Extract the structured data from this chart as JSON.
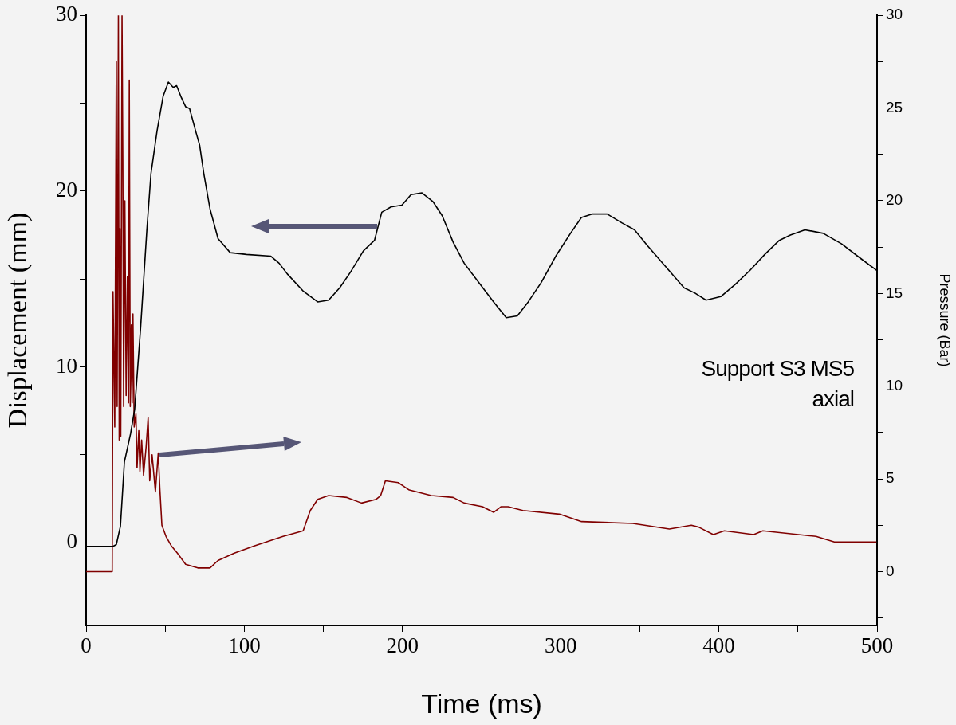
{
  "chart_data": {
    "type": "line",
    "xlabel": "Time (ms)",
    "ylabel": "Displacement (mm)",
    "y2label": "Pressure (Bar)",
    "annotations": [
      "Support S3 MS5\naxial"
    ],
    "xlim": [
      0,
      500
    ],
    "xticks": [
      0,
      {
        "value": 50,
        "label": null
      },
      100,
      {
        "value": 150,
        "label": null
      },
      200,
      {
        "value": 250,
        "label": null
      },
      300,
      {
        "value": 350,
        "label": null
      },
      400,
      {
        "value": 450,
        "label": null
      },
      500
    ],
    "ylim": [
      -4.7,
      30
    ],
    "yticks": [
      0,
      {
        "value": 5,
        "label": null
      },
      10,
      {
        "value": 15,
        "label": null
      },
      20,
      {
        "value": 25,
        "label": null
      },
      30
    ],
    "y2lim": [
      -2.9,
      30
    ],
    "y2ticks": [
      {
        "value": -2.5,
        "label": null
      },
      0,
      {
        "value": 2.5,
        "label": null
      },
      5,
      {
        "value": 7.5,
        "label": null
      },
      10,
      {
        "value": 12.5,
        "label": null
      },
      15,
      {
        "value": 17.5,
        "label": null
      },
      20,
      {
        "value": 22.5,
        "label": null
      },
      25,
      {
        "value": 27.5,
        "label": null
      },
      30
    ],
    "marker": "none",
    "legend": false,
    "series": [
      {
        "color": "#000000",
        "x": [
          0,
          17,
          19.1,
          21.7,
          24.2,
          28.1,
          30.7,
          34.5,
          38.4,
          41,
          44.8,
          48.7,
          52,
          55.1,
          57.2,
          60.3,
          62.9,
          65.4,
          69.3,
          71.8,
          74.4,
          78.3,
          83.4,
          91.1,
          101.4,
          116.8,
          122,
          127.1,
          137.4,
          146.4,
          153.3,
          160.3,
          167.2,
          175.3,
          182.3,
          186.9,
          192.7,
          199.6,
          205.4,
          212.3,
          219.3,
          225.1,
          232,
          239,
          248.3,
          257.6,
          265.6,
          272.6,
          279.5,
          287.7,
          296.9,
          306.2,
          313.1,
          320.1,
          329.4,
          338.6,
          346.7,
          354.8,
          366.4,
          378,
          384.9,
          391.9,
          401.2,
          410.4,
          419.7,
          429,
          438.2,
          445.2,
          454.4,
          466,
          477.6,
          489.2,
          499.6
        ],
        "values": [
          -0.2,
          -0.2,
          -0.1,
          0.95,
          4.6,
          6.2,
          7.6,
          12.3,
          17.8,
          21.0,
          23.4,
          25.4,
          26.2,
          25.9,
          26.0,
          25.3,
          24.8,
          24.7,
          23.4,
          22.6,
          21.0,
          19.0,
          17.3,
          16.5,
          16.4,
          16.3,
          15.9,
          15.3,
          14.3,
          13.7,
          13.8,
          14.5,
          15.4,
          16.6,
          17.2,
          18.8,
          19.1,
          19.2,
          19.8,
          19.9,
          19.4,
          18.6,
          17.1,
          15.9,
          14.8,
          13.7,
          12.8,
          12.9,
          13.7,
          14.8,
          16.3,
          17.6,
          18.5,
          18.7,
          18.7,
          18.2,
          17.8,
          16.9,
          15.7,
          14.5,
          14.2,
          13.8,
          14.0,
          14.7,
          15.5,
          16.4,
          17.2,
          17.5,
          17.8,
          17.6,
          17.0,
          16.2,
          15.5
        ]
      },
      {
        "color": "#800000",
        "axis": "y2",
        "x": [
          0,
          16.5,
          17.0,
          18.1,
          19.1,
          19.6,
          20.4,
          20.9,
          21.4,
          21.9,
          22.7,
          23.2,
          23.7,
          24.5,
          25.3,
          26.1,
          26.8,
          27.3,
          27.9,
          28.6,
          29.1,
          29.6,
          30.4,
          31.5,
          32.2,
          33.3,
          34.0,
          35.1,
          36.3,
          37.9,
          39.2,
          40.2,
          41.7,
          43.8,
          45.6,
          46.6,
          47.9,
          50.5,
          53.8,
          57.7,
          62.9,
          70.6,
          78.3,
          83.4,
          93.7,
          106.6,
          124.5,
          137.2,
          141.7,
          146.4,
          153.3,
          164.9,
          174.1,
          183.4,
          186.2,
          189.2,
          197.3,
          204.3,
          218.2,
          232,
          239,
          250.6,
          257.6,
          262.2,
          266.8,
          276.1,
          299.2,
          313.2,
          345.6,
          368.7,
          382.6,
          387.2,
          396.5,
          403.5,
          422,
          427.8,
          461.4,
          473,
          499.6
        ],
        "values": [
          0,
          0,
          15.1,
          7.8,
          27.5,
          8.9,
          30,
          7.1,
          18.5,
          7.3,
          30,
          22.2,
          8.9,
          20,
          9.5,
          15.9,
          9.1,
          26.5,
          8.9,
          13.3,
          9.1,
          13.9,
          7.8,
          8.5,
          5.6,
          7.6,
          5.4,
          7.1,
          5.2,
          6.7,
          8.3,
          4.9,
          6.3,
          4.3,
          6.4,
          4.5,
          2.5,
          1.9,
          1.4,
          1.0,
          0.4,
          0.2,
          0.2,
          0.6,
          1.0,
          1.4,
          1.9,
          2.2,
          3.3,
          3.9,
          4.1,
          4.0,
          3.7,
          3.9,
          4.1,
          4.9,
          4.8,
          4.4,
          4.1,
          4.0,
          3.7,
          3.5,
          3.2,
          3.5,
          3.5,
          3.3,
          3.1,
          2.7,
          2.6,
          2.3,
          2.5,
          2.4,
          2.0,
          2.2,
          2.0,
          2.2,
          1.9,
          1.6,
          1.6
        ]
      }
    ]
  }
}
